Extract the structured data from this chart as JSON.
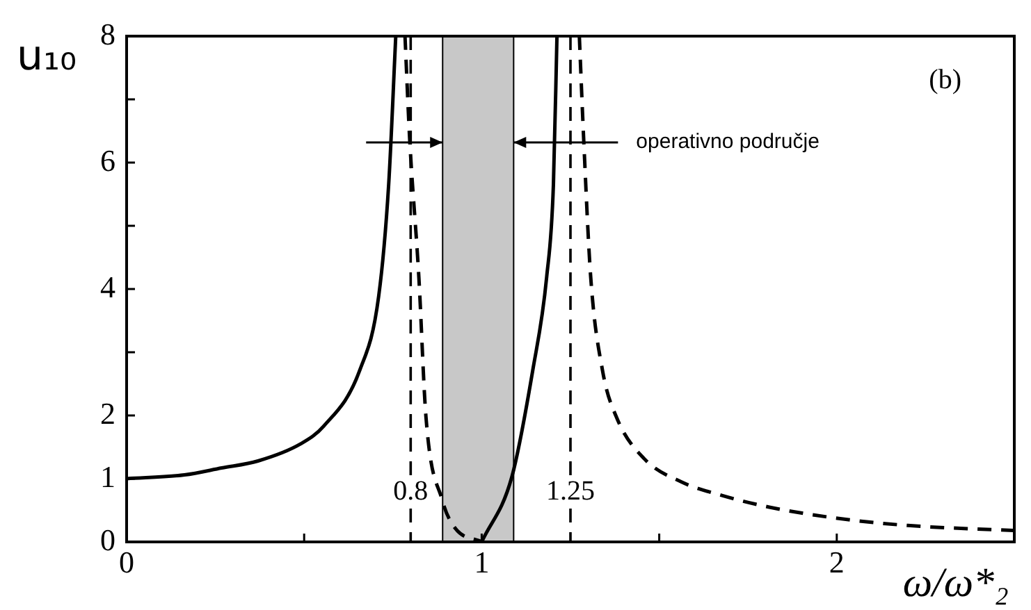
{
  "chart_data": {
    "type": "line",
    "xlabel": "ω/ω*₂",
    "ylabel": "u₁₀",
    "annotations": [
      "(b)"
    ],
    "xlim": [
      0,
      2.5
    ],
    "ylim": [
      0,
      8
    ],
    "xticks": [
      0,
      {
        "value": 0.5,
        "label": null
      },
      1,
      {
        "value": 1.5,
        "label": null
      },
      2
    ],
    "yticks": [
      0,
      1,
      2,
      {
        "value": 3,
        "label": null
      },
      4,
      {
        "value": 5,
        "label": null
      },
      6,
      {
        "value": 7,
        "label": null
      },
      8
    ],
    "grid": false,
    "legend": false,
    "marker": "none",
    "series": [
      {
        "color": "#000000",
        "line_style": "solid",
        "x": [
          0,
          0.163,
          0.268,
          0.37,
          0.49,
          0.555,
          0.657,
          0.71,
          0.738,
          0.758,
          0.9,
          1.0,
          1.085,
          1.144,
          1.183,
          1.202,
          1.212
        ],
        "values": [
          1,
          1.06,
          1.17,
          1.28,
          1.55,
          1.83,
          2.72,
          3.89,
          5.65,
          8,
          null,
          0,
          1.03,
          2.72,
          4.19,
          5.65,
          8
        ]
      },
      {
        "color": "#000000",
        "line_style": "dashed",
        "x": [
          0.784,
          0.797,
          0.823,
          0.843,
          0.889,
          0.925,
          1.0,
          1.1,
          1.275,
          1.287,
          1.307,
          1.34,
          1.379,
          1.457,
          1.562,
          1.68,
          1.81,
          2.006,
          2.2,
          2.497
        ],
        "values": [
          8,
          6.39,
          4.19,
          1.98,
          0.66,
          0.22,
          0,
          null,
          8,
          6.4,
          4.19,
          2.72,
          1.98,
          1.32,
          0.95,
          0.73,
          0.55,
          0.37,
          0.26,
          0.18
        ]
      }
    ],
    "ref_lines": [
      {
        "axis": "x",
        "value": 0.8,
        "label": "0.8",
        "line_style": "dashed",
        "color": "#000000"
      },
      {
        "axis": "x",
        "value": 1.25,
        "label": "1.25",
        "line_style": "dashed",
        "color": "#000000"
      }
    ],
    "bands": [
      {
        "axis": "x",
        "from": 0.89,
        "to": 1.09,
        "label": "operativno područje",
        "color": "#c8c8c8"
      }
    ]
  }
}
